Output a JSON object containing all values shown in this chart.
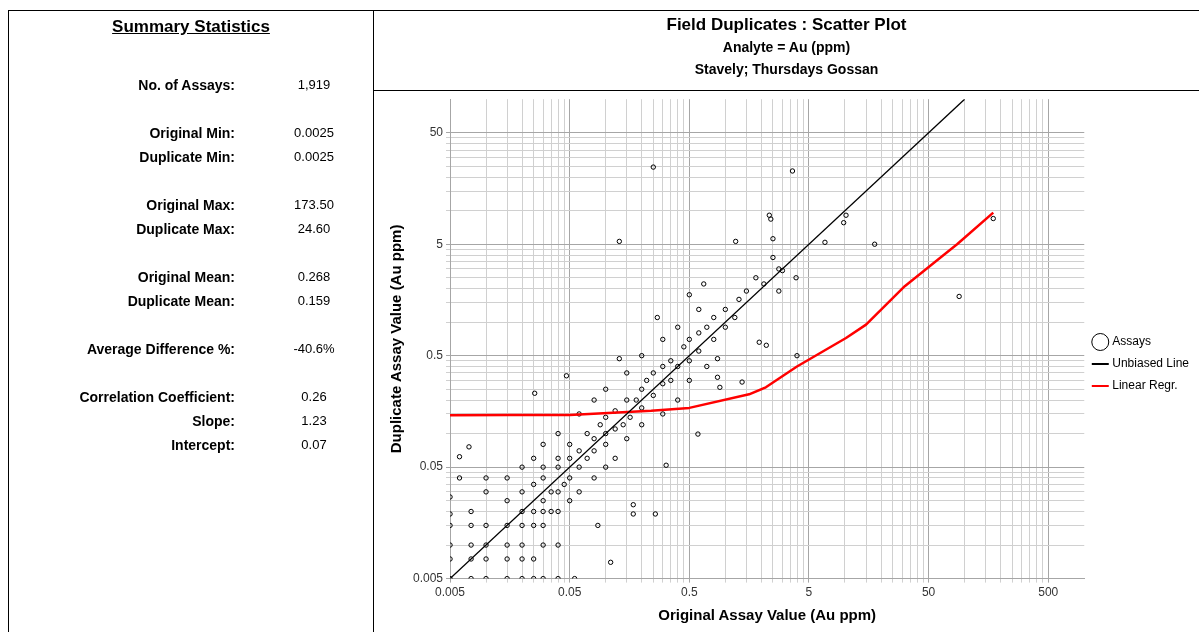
{
  "chart_data": [
    {
      "type": "other",
      "title": "Summary Statistics",
      "annotations": [
        "No. of Assays:",
        "1,919",
        "Original Min:",
        "0.0025",
        "Duplicate Min:",
        "0.0025",
        "Original Max:",
        "173.50",
        "Duplicate Max:",
        "24.60",
        "Original Mean:",
        "0.268",
        "Duplicate Mean:",
        "0.159",
        "Average Difference %:",
        "-40.6%",
        "Correlation Coefficient:",
        "0.26",
        "Slope:",
        "1.23",
        "Intercept:",
        "0.07"
      ]
    },
    {
      "type": "scatter",
      "title": "Field Duplicates : Scatter Plot",
      "subtitle": "Analyte = Au (ppm)\nStavely; Thursdays Gossan",
      "xlabel": "Original Assay Value (Au ppm)",
      "ylabel": "Duplicate Assay Value (Au ppm)",
      "log": "xy",
      "grid": true,
      "legend": "right",
      "marker": "circle",
      "xlim": [
        0.005,
        1000
      ],
      "ylim": [
        0.005,
        100
      ],
      "xticks": [
        0.005,
        {
          "value": 0.01,
          "label": null
        },
        {
          "value": 0.015,
          "label": null
        },
        {
          "value": 0.02,
          "label": null
        },
        {
          "value": 0.025,
          "label": null
        },
        {
          "value": 0.03,
          "label": null
        },
        {
          "value": 0.035,
          "label": null
        },
        {
          "value": 0.04,
          "label": null
        },
        {
          "value": 0.045,
          "label": null
        },
        0.05,
        {
          "value": 0.1,
          "label": null
        },
        {
          "value": 0.15,
          "label": null
        },
        {
          "value": 0.2,
          "label": null
        },
        {
          "value": 0.25,
          "label": null
        },
        {
          "value": 0.3,
          "label": null
        },
        {
          "value": 0.35,
          "label": null
        },
        {
          "value": 0.4,
          "label": null
        },
        {
          "value": 0.45,
          "label": null
        },
        0.5,
        {
          "value": 1,
          "label": null
        },
        {
          "value": 1.5,
          "label": null
        },
        {
          "value": 2,
          "label": null
        },
        {
          "value": 2.5,
          "label": null
        },
        {
          "value": 3,
          "label": null
        },
        {
          "value": 3.5,
          "label": null
        },
        {
          "value": 4,
          "label": null
        },
        {
          "value": 4.5,
          "label": null
        },
        5,
        {
          "value": 10,
          "label": null
        },
        {
          "value": 15,
          "label": null
        },
        {
          "value": 20,
          "label": null
        },
        {
          "value": 25,
          "label": null
        },
        {
          "value": 30,
          "label": null
        },
        {
          "value": 35,
          "label": null
        },
        {
          "value": 40,
          "label": null
        },
        {
          "value": 45,
          "label": null
        },
        50,
        {
          "value": 100,
          "label": null
        },
        {
          "value": 150,
          "label": null
        },
        {
          "value": 200,
          "label": null
        },
        {
          "value": 250,
          "label": null
        },
        {
          "value": 300,
          "label": null
        },
        {
          "value": 350,
          "label": null
        },
        {
          "value": 400,
          "label": null
        },
        {
          "value": 450,
          "label": null
        },
        500
      ],
      "yticks": [
        0.005,
        {
          "value": 0.01,
          "label": null
        },
        {
          "value": 0.015,
          "label": null
        },
        {
          "value": 0.02,
          "label": null
        },
        {
          "value": 0.025,
          "label": null
        },
        {
          "value": 0.03,
          "label": null
        },
        {
          "value": 0.035,
          "label": null
        },
        {
          "value": 0.04,
          "label": null
        },
        {
          "value": 0.045,
          "label": null
        },
        0.05,
        {
          "value": 0.1,
          "label": null
        },
        {
          "value": 0.15,
          "label": null
        },
        {
          "value": 0.2,
          "label": null
        },
        {
          "value": 0.25,
          "label": null
        },
        {
          "value": 0.3,
          "label": null
        },
        {
          "value": 0.35,
          "label": null
        },
        {
          "value": 0.4,
          "label": null
        },
        {
          "value": 0.45,
          "label": null
        },
        0.5,
        {
          "value": 1,
          "label": null
        },
        {
          "value": 1.5,
          "label": null
        },
        {
          "value": 2,
          "label": null
        },
        {
          "value": 2.5,
          "label": null
        },
        {
          "value": 3,
          "label": null
        },
        {
          "value": 3.5,
          "label": null
        },
        {
          "value": 4,
          "label": null
        },
        {
          "value": 4.5,
          "label": null
        },
        5,
        {
          "value": 10,
          "label": null
        },
        {
          "value": 15,
          "label": null
        },
        {
          "value": 20,
          "label": null
        },
        {
          "value": 25,
          "label": null
        },
        {
          "value": 30,
          "label": null
        },
        {
          "value": 35,
          "label": null
        },
        {
          "value": 40,
          "label": null
        },
        {
          "value": 45,
          "label": null
        },
        50
      ],
      "series": [
        {
          "name": "Assays",
          "type": "scatter",
          "color": "#000000",
          "x": [
            0.25,
            0.13,
            1.22,
            0.66,
            0.5,
            0.27,
            1.5,
            3.64,
            2.33,
            2.4,
            2.5,
            2.5,
            2.8,
            3.0,
            2.1,
            1.8,
            2.8,
            3.9,
            6.8,
            9.75,
            10.2,
            17.7,
            90,
            173.5,
            1.92,
            2.2,
            3.97,
            0.13,
            0.047,
            0.0255,
            0.0072,
            0.006,
            0.006,
            0.005,
            0.005,
            0.005,
            0.11,
            0.055,
            0.086,
            0.26,
            0.17,
            0.17,
            0.32,
            0.59,
            1.38,
            0.86,
            0.86,
            0.9,
            0.005,
            0.0075,
            0.01,
            0.015,
            0.02,
            0.025,
            0.03,
            0.04,
            0.005,
            0.005,
            0.0075,
            0.01,
            0.01,
            0.015,
            0.02,
            0.025,
            0.0075,
            0.0075,
            0.01,
            0.015,
            0.015,
            0.02,
            0.02,
            0.02,
            0.025,
            0.025,
            0.03,
            0.03,
            0.03,
            0.035,
            0.04,
            0.04,
            0.015,
            0.02,
            0.025,
            0.03,
            0.03,
            0.035,
            0.04,
            0.04,
            0.045,
            0.05,
            0.05,
            0.05,
            0.06,
            0.06,
            0.07,
            0.07,
            0.08,
            0.08,
            0.09,
            0.1,
            0.1,
            0.1,
            0.12,
            0.12,
            0.14,
            0.15,
            0.16,
            0.18,
            0.2,
            0.2,
            0.22,
            0.25,
            0.25,
            0.3,
            0.3,
            0.35,
            0.35,
            0.4,
            0.45,
            0.5,
            0.5,
            0.6,
            0.6,
            0.7,
            0.8,
            0.8,
            1.0,
            1.0,
            1.2,
            1.3,
            0.03,
            0.04,
            0.05,
            0.06,
            0.08,
            0.1,
            0.12,
            0.15,
            0.2,
            0.3,
            0.4,
            0.5,
            0.7,
            0.015,
            0.02,
            0.03,
            0.04,
            0.06,
            0.08,
            0.1,
            0.15,
            0.2,
            0.3,
            0.4,
            0.6,
            0.01,
            0.01,
            0.0075,
            0.025
          ],
          "values": [
            24.6,
            5.3,
            5.3,
            2.2,
            1.76,
            1.1,
            1.9,
            22.7,
            9.1,
            8.4,
            5.6,
            3.8,
            3.0,
            2.9,
            2.2,
            2.5,
            1.9,
            2.5,
            5.2,
            7.8,
            9.1,
            5.0,
            1.7,
            8.5,
            0.66,
            0.62,
            0.5,
            0.47,
            0.33,
            0.23,
            0.076,
            0.062,
            0.04,
            0.027,
            0.019,
            0.015,
            0.007,
            0.005,
            0.015,
            0.019,
            0.019,
            0.023,
            0.052,
            0.099,
            0.29,
            0.47,
            0.32,
            0.26,
            0.005,
            0.005,
            0.005,
            0.005,
            0.005,
            0.005,
            0.005,
            0.005,
            0.0075,
            0.01,
            0.0075,
            0.01,
            0.0075,
            0.0075,
            0.0075,
            0.0075,
            0.01,
            0.015,
            0.015,
            0.01,
            0.015,
            0.01,
            0.015,
            0.02,
            0.015,
            0.02,
            0.01,
            0.02,
            0.025,
            0.02,
            0.01,
            0.03,
            0.025,
            0.03,
            0.035,
            0.04,
            0.05,
            0.03,
            0.05,
            0.06,
            0.035,
            0.04,
            0.06,
            0.08,
            0.05,
            0.07,
            0.06,
            0.1,
            0.07,
            0.09,
            0.12,
            0.08,
            0.1,
            0.14,
            0.11,
            0.16,
            0.12,
            0.2,
            0.14,
            0.2,
            0.17,
            0.25,
            0.3,
            0.22,
            0.35,
            0.28,
            0.4,
            0.3,
            0.45,
            0.4,
            0.6,
            0.45,
            0.7,
            0.55,
            0.8,
            0.9,
            0.7,
            1.1,
            0.9,
            1.3,
            1.1,
            1.6,
            0.015,
            0.02,
            0.025,
            0.03,
            0.04,
            0.05,
            0.06,
            0.09,
            0.12,
            0.15,
            0.2,
            0.3,
            0.4,
            0.04,
            0.05,
            0.08,
            0.1,
            0.15,
            0.2,
            0.25,
            0.35,
            0.5,
            0.7,
            0.9,
            1.3,
            0.03,
            0.04,
            0.02,
            0.06
          ]
        },
        {
          "name": "Unbiased Line",
          "type": "line",
          "color": "#000000",
          "marker": "none",
          "x": [
            0.005,
            100
          ],
          "values": [
            0.005,
            100
          ]
        },
        {
          "name": "Linear Regr.",
          "type": "line",
          "color": "#ff0000",
          "marker": "none",
          "x": [
            0.005,
            0.05,
            0.24,
            0.5,
            1.58,
            2.18,
            3.97,
            10.2,
            15,
            31.6,
            86.5,
            173.5
          ],
          "values": [
            0.146,
            0.147,
            0.16,
            0.17,
            0.225,
            0.26,
            0.4,
            0.72,
            0.95,
            2.1,
            5.0,
            9.6
          ]
        }
      ]
    }
  ]
}
